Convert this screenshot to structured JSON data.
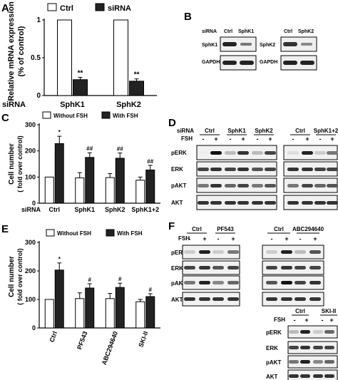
{
  "panels": {
    "A": "A",
    "B": "B",
    "C": "C",
    "D": "D",
    "E": "E",
    "F": "F"
  },
  "panel_b": {
    "siRNA": "siRNA",
    "blot1": {
      "cols": [
        "Ctrl",
        "SphK1"
      ],
      "rows": [
        "SphK1",
        "GAPDH"
      ]
    },
    "blot2": {
      "cols": [
        "Ctrl",
        "SphK2"
      ],
      "rows": [
        "SphK2",
        "GAPDH"
      ]
    }
  },
  "panel_d": {
    "siRNA": "siRNA",
    "FSH": "FSH",
    "groups1": [
      "Ctrl",
      "SphK1",
      "SphK2"
    ],
    "groups2": [
      "Ctrl",
      "SphK1+2"
    ],
    "fsh_signs": [
      "-",
      "+",
      "-",
      "+",
      "-",
      "+",
      "-",
      "+",
      "-",
      "+"
    ],
    "rows": [
      "pERK",
      "ERK",
      "pAKT",
      "AKT"
    ]
  },
  "panel_f": {
    "FSH": "FSH",
    "top_groups1": [
      "Ctrl",
      "PF543"
    ],
    "top_groups2": [
      "Ctrl",
      "ABC294640"
    ],
    "top_signs": [
      "-",
      "+",
      "-",
      "+",
      "-",
      "+",
      "-",
      "+"
    ],
    "bottom_groups": [
      "Ctrl",
      "SKI-II"
    ],
    "bottom_signs": [
      "-",
      "+",
      "-",
      "+"
    ],
    "rows": [
      "pERK",
      "ERK",
      "pAKT",
      "AKT"
    ]
  },
  "chart_data": [
    {
      "type": "bar",
      "panel": "A",
      "ylabel": "Relative mRNA expression (% of control)",
      "ylabel_line1": "Relative mRNA expression",
      "ylabel_line2": "(% of control)",
      "xaxis_prefix": "siRNA",
      "categories": [
        "SphK1",
        "SphK2"
      ],
      "ylim": [
        0,
        1
      ],
      "yticks": [
        "0",
        "0.5",
        "1"
      ],
      "legend": [
        "Ctrl",
        "siRNA"
      ],
      "series": [
        {
          "name": "Ctrl",
          "values": [
            1.0,
            1.0
          ],
          "errors": [
            0,
            0
          ]
        },
        {
          "name": "siRNA",
          "values": [
            0.21,
            0.19
          ],
          "errors": [
            0.03,
            0.03
          ]
        }
      ],
      "annotations": [
        "**",
        "**"
      ]
    },
    {
      "type": "bar",
      "panel": "C",
      "ylabel": "Cell number (fold over control)",
      "ylabel_line1": "Cell number",
      "ylabel_line2": "( fold over control)",
      "xaxis_prefix": "siRNA",
      "categories": [
        "Ctrl",
        "SphK1",
        "SphK2",
        "SphK1+2"
      ],
      "ylim": [
        0,
        300
      ],
      "yticks": [
        "0",
        "100",
        "200",
        "300"
      ],
      "legend": [
        "Without FSH",
        "With FSH"
      ],
      "series": [
        {
          "name": "Without FSH",
          "values": [
            100,
            97,
            98,
            88
          ],
          "errors": [
            0,
            20,
            15,
            12
          ]
        },
        {
          "name": "With FSH",
          "values": [
            228,
            175,
            172,
            127
          ],
          "errors": [
            28,
            18,
            20,
            18
          ]
        }
      ],
      "annotations": [
        "*",
        "##",
        "##",
        "##"
      ]
    },
    {
      "type": "bar",
      "panel": "E",
      "ylabel": "Cell number (fold over control)",
      "ylabel_line1": "Cell number",
      "ylabel_line2": "( fold over control)",
      "categories": [
        "Ctrl",
        "PF543",
        "ABC294640",
        "SKI-II"
      ],
      "ylim": [
        0,
        300
      ],
      "yticks": [
        "0",
        "100",
        "200",
        "300"
      ],
      "legend": [
        "Without FSH",
        "With FSH"
      ],
      "series": [
        {
          "name": "Without FSH",
          "values": [
            100,
            103,
            103,
            92
          ],
          "errors": [
            0,
            20,
            18,
            8
          ]
        },
        {
          "name": "With FSH",
          "values": [
            203,
            140,
            142,
            110
          ],
          "errors": [
            25,
            15,
            15,
            10
          ]
        }
      ],
      "annotations": [
        "*",
        "#",
        "#",
        "#"
      ]
    }
  ]
}
